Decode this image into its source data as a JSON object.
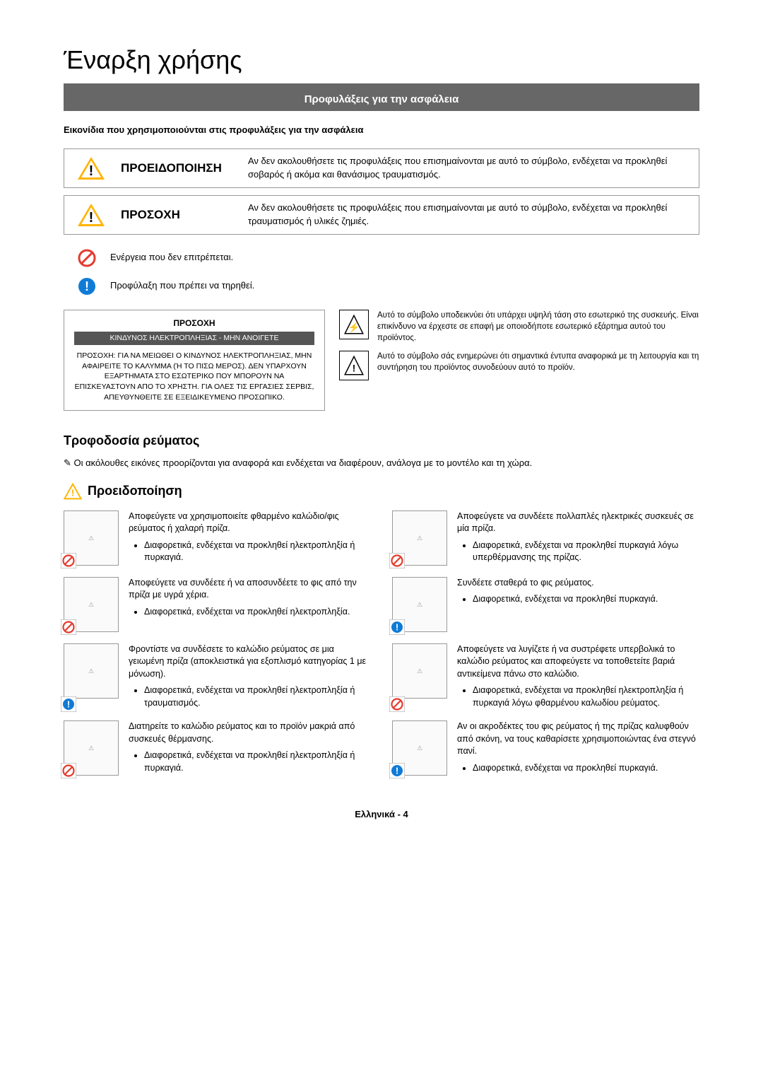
{
  "page_title": "Έναρξη χρήσης",
  "section_banner": "Προφυλάξεις για την ασφάλεια",
  "icons_heading": "Εικονίδια που χρησιμοποιούνται στις προφυλάξεις για την ασφάλεια",
  "colors": {
    "banner_bg": "#676767",
    "warn_yellow": "#ffb400",
    "prohibit_red": "#e43b2e",
    "info_blue": "#0f7bd6",
    "border": "#999999"
  },
  "alerts": [
    {
      "label": "ΠΡΟΕΙΔΟΠΟΙΗΣΗ",
      "text": "Αν δεν ακολουθήσετε τις προφυλάξεις που επισημαίνονται με αυτό το σύμβολο, ενδέχεται να προκληθεί σοβαρός ή ακόμα και θανάσιμος τραυματισμός."
    },
    {
      "label": "ΠΡΟΣΟΧΗ",
      "text": "Αν δεν ακολουθήσετε τις προφυλάξεις που επισημαίνονται με αυτό το σύμβολο, ενδέχεται να προκληθεί τραυματισμός ή υλικές ζημιές."
    }
  ],
  "legend": [
    {
      "kind": "prohibit",
      "text": "Ενέργεια που δεν επιτρέπεται."
    },
    {
      "kind": "info",
      "text": "Προφύλαξη που πρέπει να τηρηθεί."
    }
  ],
  "caution_panel": {
    "title": "ΠΡΟΣΟΧΗ",
    "bar": "ΚΙΝΔΥΝΟΣ ΗΛΕΚΤΡΟΠΛΗΞΙΑΣ - ΜΗΝ ΑΝΟΙΓΕΤΕ",
    "body": "ΠΡΟΣΟΧΗ: ΓΙΑ ΝΑ ΜΕΙΩΘΕΙ Ο ΚΙΝΔΥΝΟΣ ΗΛΕΚΤΡΟΠΛΗΞΙΑΣ, ΜΗΝ ΑΦΑΙΡΕΙΤΕ ΤΟ ΚΑΛΥΜΜΑ (Ή ΤΟ ΠΙΣΩ ΜΕΡΟΣ). ΔΕΝ ΥΠΑΡΧΟΥΝ ΕΞΑΡΤΗΜΑΤΑ ΣΤΟ ΕΣΩΤΕΡΙΚΟ ΠΟΥ ΜΠΟΡΟΥΝ ΝΑ ΕΠΙΣΚΕΥΑΣΤΟΥΝ ΑΠΟ ΤΟ ΧΡΗΣΤΗ. ΓΙΑ ΟΛΕΣ ΤΙΣ ΕΡΓΑΣΙΕΣ ΣΕΡΒΙΣ, ΑΠΕΥΘΥΝΘΕΙΤΕ ΣΕ ΕΞΕΙΔΙΚΕΥΜΕΝΟ ΠΡΟΣΩΠΙΚΟ."
  },
  "symbol_explanations": [
    {
      "glyph": "⚡",
      "text": "Αυτό το σύμβολο υποδεικνύει ότι υπάρχει υψηλή τάση στο εσωτερικό της συσκευής. Είναι επικίνδυνο να έρχεστε σε επαφή με οποιοδήποτε εσωτερικό εξάρτημα αυτού του προϊόντος."
    },
    {
      "glyph": "!",
      "text": "Αυτό το σύμβολο σάς ενημερώνει ότι σημαντικά έντυπα αναφορικά με τη λειτουργία και τη συντήρηση του προϊόντος συνοδεύουν αυτό το προϊόν."
    }
  ],
  "power_section_title": "Τροφοδοσία ρεύματος",
  "power_note": "Οι ακόλουθες εικόνες προορίζονται για αναφορά και ενδέχεται να διαφέρουν, ανάλογα με το μοντέλο και τη χώρα.",
  "warning_heading": "Προειδοποίηση",
  "warnings_left": [
    {
      "badge": "prohibit",
      "head": "Αποφεύγετε να χρησιμοποιείτε φθαρμένο καλώδιο/φις ρεύματος ή χαλαρή πρίζα.",
      "bullet": "Διαφορετικά, ενδέχεται να προκληθεί ηλεκτροπληξία ή πυρκαγιά."
    },
    {
      "badge": "prohibit",
      "head": "Αποφεύγετε να συνδέετε ή να αποσυνδέετε το φις από την πρίζα με υγρά χέρια.",
      "bullet": "Διαφορετικά, ενδέχεται να προκληθεί ηλεκτροπληξία."
    },
    {
      "badge": "info",
      "head": "Φροντίστε να συνδέσετε το καλώδιο ρεύματος σε μια γειωμένη πρίζα (αποκλειστικά για εξοπλισμό κατηγορίας 1 με μόνωση).",
      "bullet": "Διαφορετικά, ενδέχεται να προκληθεί ηλεκτροπληξία ή τραυματισμός."
    },
    {
      "badge": "prohibit",
      "head": "Διατηρείτε το καλώδιο ρεύματος και το προϊόν μακριά από συσκευές θέρμανσης.",
      "bullet": "Διαφορετικά, ενδέχεται να προκληθεί ηλεκτροπληξία ή πυρκαγιά."
    }
  ],
  "warnings_right": [
    {
      "badge": "prohibit",
      "head": "Αποφεύγετε να συνδέετε πολλαπλές ηλεκτρικές συσκευές σε μία πρίζα.",
      "bullet": "Διαφορετικά, ενδέχεται να προκληθεί πυρκαγιά λόγω υπερθέρμανσης της πρίζας."
    },
    {
      "badge": "info",
      "head": "Συνδέετε σταθερά το φις ρεύματος.",
      "bullet": "Διαφορετικά, ενδέχεται να προκληθεί πυρκαγιά."
    },
    {
      "badge": "prohibit",
      "head": "Αποφεύγετε να λυγίζετε ή να συστρέφετε υπερβολικά το καλώδιο ρεύματος και αποφεύγετε να τοποθετείτε βαριά αντικείμενα πάνω στο καλώδιο.",
      "bullet": "Διαφορετικά, ενδέχεται να προκληθεί ηλεκτροπληξία ή πυρκαγιά λόγω φθαρμένου καλωδίου ρεύματος."
    },
    {
      "badge": "info",
      "head": "Αν οι ακροδέκτες του φις ρεύματος ή της πρίζας καλυφθούν από σκόνη, να τους καθαρίσετε χρησιμοποιώντας ένα στεγνό πανί.",
      "bullet": "Διαφορετικά, ενδέχεται να προκληθεί πυρκαγιά."
    }
  ],
  "footer": {
    "lang": "Ελληνικά",
    "sep": " - ",
    "page": "4"
  }
}
